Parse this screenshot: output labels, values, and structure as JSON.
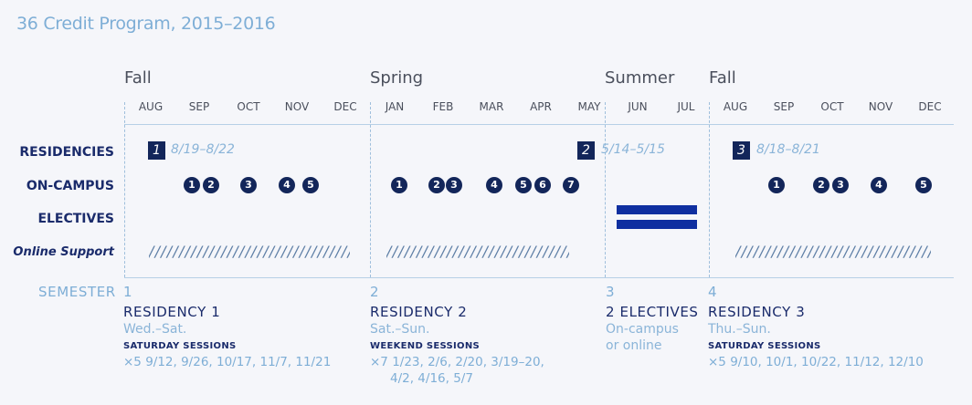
{
  "title": "36 Credit Program, 2015–2016",
  "terms": [
    {
      "label": "Fall"
    },
    {
      "label": "Spring"
    },
    {
      "label": "Summer"
    },
    {
      "label": "Fall"
    }
  ],
  "months": [
    "AUG",
    "SEP",
    "OCT",
    "NOV",
    "DEC",
    "JAN",
    "FEB",
    "MAR",
    "APR",
    "MAY",
    "JUN",
    "JUL",
    "AUG",
    "SEP",
    "OCT",
    "NOV",
    "DEC"
  ],
  "rows": {
    "residencies": "RESIDENCIES",
    "on_campus": "ON-CAMPUS",
    "electives": "ELECTIVES",
    "online_support": "Online Support"
  },
  "residencies": [
    {
      "number": "1",
      "dates": "8/19–8/22"
    },
    {
      "number": "2",
      "dates": "5/14–5/15"
    },
    {
      "number": "3",
      "dates": "8/18–8/21"
    }
  ],
  "on_campus_sessions": [
    "1",
    "2",
    "3",
    "4",
    "5",
    "1",
    "2",
    "3",
    "4",
    "5",
    "6",
    "7",
    "1",
    "2",
    "3",
    "4",
    "5"
  ],
  "slashes": "/////////////////////////////////////////",
  "semester_label": "SEMESTER",
  "semesters": [
    {
      "number": "1",
      "name": "RESIDENCY 1",
      "days": "Wed.–Sat.",
      "sessions_label": "SATURDAY SESSIONS",
      "sessions": "×5  9/12, 9/26, 10/17, 11/7, 11/21",
      "sessions_cont": ""
    },
    {
      "number": "2",
      "name": "RESIDENCY 2",
      "days": "Sat.–Sun.",
      "sessions_label": "WEEKEND SESSIONS",
      "sessions": "×7  1/23, 2/6, 2/20, 3/19–20,",
      "sessions_cont": "4/2, 4/16, 5/7"
    },
    {
      "number": "3",
      "name": "2 ELECTIVES",
      "days": "On-campus",
      "days2": "or online"
    },
    {
      "number": "4",
      "name": "RESIDENCY 3",
      "days": "Thu.–Sun.",
      "sessions_label": "SATURDAY SESSIONS",
      "sessions": "×5  9/10, 10/1, 10/22, 11/12, 12/10",
      "sessions_cont": ""
    }
  ],
  "colors": {
    "navy": "#13265a",
    "light_blue": "#7eaed6",
    "elective_band": "#0f2fa0"
  }
}
